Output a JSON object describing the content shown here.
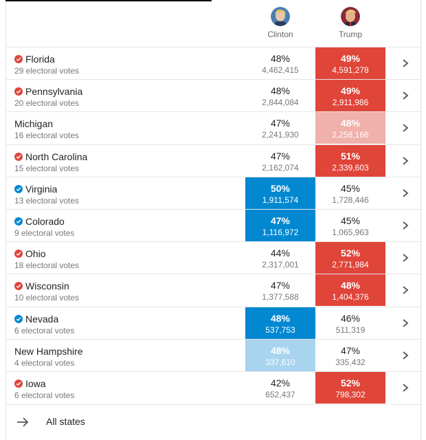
{
  "candidates": {
    "clinton": {
      "name": "Clinton",
      "color": "#0288d1",
      "light_color": "#a9d4f0"
    },
    "trump": {
      "name": "Trump",
      "color": "#e0453a",
      "light_color": "#f0b0ab"
    }
  },
  "rows": [
    {
      "state": "Florida",
      "votes": "29 electoral votes",
      "called": "trump",
      "clinton_pct": "48%",
      "clinton_count": "4,462,415",
      "trump_pct": "49%",
      "trump_count": "4,591,278",
      "leader": "trump",
      "leader_shade": "strong"
    },
    {
      "state": "Pennsylvania",
      "votes": "20 electoral votes",
      "called": "trump",
      "clinton_pct": "48%",
      "clinton_count": "2,844,084",
      "trump_pct": "49%",
      "trump_count": "2,911,986",
      "leader": "trump",
      "leader_shade": "strong"
    },
    {
      "state": "Michigan",
      "votes": "16 electoral votes",
      "called": "",
      "clinton_pct": "47%",
      "clinton_count": "2,241,930",
      "trump_pct": "48%",
      "trump_count": "2,258,166",
      "leader": "trump",
      "leader_shade": "light"
    },
    {
      "state": "North Carolina",
      "votes": "15 electoral votes",
      "called": "trump",
      "clinton_pct": "47%",
      "clinton_count": "2,162,074",
      "trump_pct": "51%",
      "trump_count": "2,339,603",
      "leader": "trump",
      "leader_shade": "strong"
    },
    {
      "state": "Virginia",
      "votes": "13 electoral votes",
      "called": "clinton",
      "clinton_pct": "50%",
      "clinton_count": "1,911,574",
      "trump_pct": "45%",
      "trump_count": "1,728,446",
      "leader": "clinton",
      "leader_shade": "strong"
    },
    {
      "state": "Colorado",
      "votes": "9 electoral votes",
      "called": "clinton",
      "clinton_pct": "47%",
      "clinton_count": "1,116,972",
      "trump_pct": "45%",
      "trump_count": "1,065,963",
      "leader": "clinton",
      "leader_shade": "strong"
    },
    {
      "state": "Ohio",
      "votes": "18 electoral votes",
      "called": "trump",
      "clinton_pct": "44%",
      "clinton_count": "2,317,001",
      "trump_pct": "52%",
      "trump_count": "2,771,984",
      "leader": "trump",
      "leader_shade": "strong"
    },
    {
      "state": "Wisconsin",
      "votes": "10 electoral votes",
      "called": "trump",
      "clinton_pct": "47%",
      "clinton_count": "1,377,588",
      "trump_pct": "48%",
      "trump_count": "1,404,376",
      "leader": "trump",
      "leader_shade": "strong"
    },
    {
      "state": "Nevada",
      "votes": "6 electoral votes",
      "called": "clinton",
      "clinton_pct": "48%",
      "clinton_count": "537,753",
      "trump_pct": "46%",
      "trump_count": "511,319",
      "leader": "clinton",
      "leader_shade": "strong"
    },
    {
      "state": "New Hampshire",
      "votes": "4 electoral votes",
      "called": "",
      "clinton_pct": "48%",
      "clinton_count": "337,610",
      "trump_pct": "47%",
      "trump_count": "335,432",
      "leader": "clinton",
      "leader_shade": "light"
    },
    {
      "state": "Iowa",
      "votes": "6 electoral votes",
      "called": "trump",
      "clinton_pct": "42%",
      "clinton_count": "652,437",
      "trump_pct": "52%",
      "trump_count": "798,302",
      "leader": "trump",
      "leader_shade": "strong"
    }
  ],
  "footer": {
    "label": "All states",
    "icon": "arrow-right-icon"
  },
  "icons": {
    "called": "check-circle-icon",
    "row_link": "chevron-right-icon"
  }
}
